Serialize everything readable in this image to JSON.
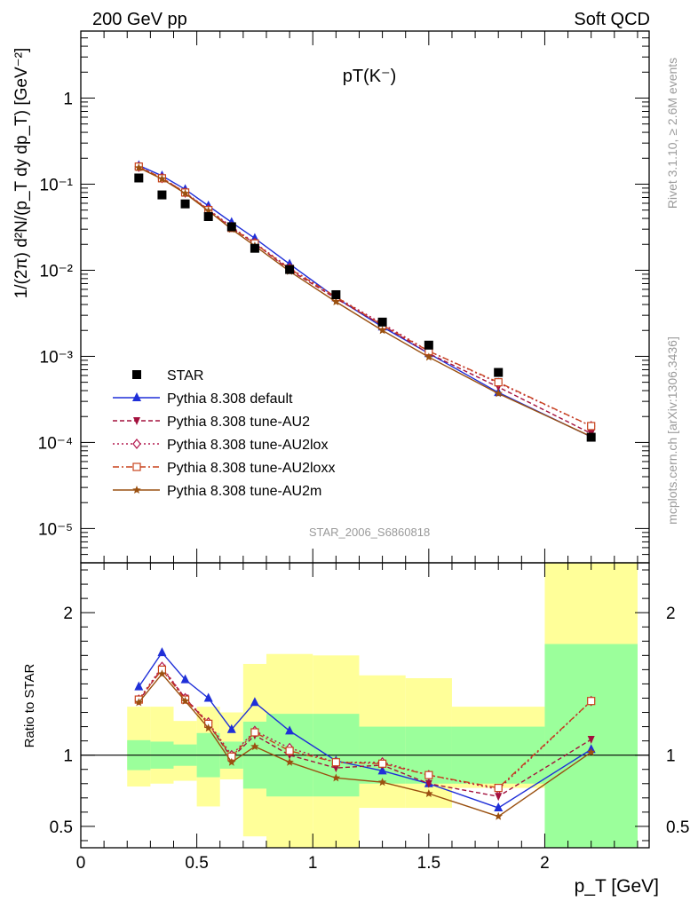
{
  "header": {
    "left": "200 GeV pp",
    "right": "Soft QCD",
    "side_top": "Rivet 3.1.10, ≥ 2.6M events",
    "side_bottom": "mcplots.cern.ch [arXiv:1306.3436]"
  },
  "chart_data": [
    {
      "type": "line",
      "title": "pT(K⁻)",
      "watermark": "STAR_2006_S6860818",
      "ylabel": "1/(2π) d²N/(p_T dy dp_T) [GeV⁻²]",
      "yscale": "log",
      "xlim": [
        0,
        2.45
      ],
      "ylim": [
        4e-06,
        6
      ],
      "ytick_labels": [
        "10⁻⁵",
        "10⁻⁴",
        "10⁻³",
        "10⁻²",
        "10⁻¹",
        "1"
      ],
      "legend_position": "lower-left",
      "x": [
        0.25,
        0.35,
        0.45,
        0.55,
        0.65,
        0.75,
        0.9,
        1.1,
        1.3,
        1.5,
        1.8,
        2.2
      ],
      "series": [
        {
          "name": "STAR",
          "color": "#000000",
          "marker": "square",
          "line": "none",
          "values": [
            0.118,
            0.075,
            0.059,
            0.042,
            0.032,
            0.018,
            0.0102,
            0.0052,
            0.0025,
            0.00135,
            0.00065,
            0.000115
          ]
        },
        {
          "name": "Pythia 8.308 default",
          "color": "#1f2fd8",
          "marker": "triangle-up",
          "line": "solid",
          "values": [
            0.165,
            0.125,
            0.087,
            0.056,
            0.036,
            0.0235,
            0.0118,
            0.0048,
            0.0022,
            0.00108,
            0.00038,
            0.000116
          ]
        },
        {
          "name": "Pythia 8.308 tune-AU2",
          "color": "#a3103d",
          "marker": "triangle-down",
          "line": "dashed",
          "values": [
            0.158,
            0.118,
            0.079,
            0.05,
            0.031,
            0.0205,
            0.0101,
            0.0047,
            0.0023,
            0.00108,
            0.00044,
            0.000127
          ]
        },
        {
          "name": "Pythia 8.308 tune-AU2lox",
          "color": "#b3184e",
          "marker": "diamond",
          "line": "dotted",
          "values": [
            0.159,
            0.118,
            0.08,
            0.051,
            0.032,
            0.0208,
            0.0106,
            0.0049,
            0.0024,
            0.00115,
            0.00049,
            0.000155
          ]
        },
        {
          "name": "Pythia 8.308 tune-AU2loxx",
          "color": "#c8421c",
          "marker": "open-square",
          "line": "dashdot",
          "values": [
            0.16,
            0.117,
            0.08,
            0.05,
            0.031,
            0.0205,
            0.0104,
            0.0049,
            0.0023,
            0.00115,
            0.0005,
            0.000155
          ]
        },
        {
          "name": "Pythia 8.308 tune-AU2m",
          "color": "#9a5010",
          "marker": "star",
          "line": "solid",
          "values": [
            0.155,
            0.115,
            0.078,
            0.049,
            0.03,
            0.0192,
            0.0097,
            0.0043,
            0.002,
            0.00098,
            0.00037,
            0.000117
          ]
        }
      ]
    },
    {
      "type": "line",
      "ylabel": "Ratio to STAR",
      "xlabel": "p_T [GeV]",
      "xlim": [
        0,
        2.45
      ],
      "ylim": [
        0.35,
        2.35
      ],
      "xtick_labels": [
        "0",
        "0.5",
        "1",
        "1.5",
        "2"
      ],
      "ytick_labels": [
        "0.5",
        "1",
        "2"
      ],
      "bands": {
        "bins": [
          [
            0.2,
            0.3
          ],
          [
            0.3,
            0.4
          ],
          [
            0.4,
            0.5
          ],
          [
            0.5,
            0.6
          ],
          [
            0.6,
            0.7
          ],
          [
            0.7,
            0.8
          ],
          [
            0.8,
            1.0
          ],
          [
            1.0,
            1.2
          ],
          [
            1.2,
            1.4
          ],
          [
            1.4,
            1.6
          ],
          [
            1.6,
            2.0
          ],
          [
            2.0,
            2.4
          ]
        ],
        "stat": [
          [
            0.895,
            1.105
          ],
          [
            0.905,
            1.095
          ],
          [
            0.925,
            1.075
          ],
          [
            0.845,
            1.155
          ],
          [
            0.905,
            1.095
          ],
          [
            0.765,
            1.235
          ],
          [
            0.71,
            1.29
          ],
          [
            0.71,
            1.29
          ],
          [
            0.8,
            1.2
          ],
          [
            0.8,
            1.2
          ],
          [
            0.8,
            1.2
          ],
          [
            0.35,
            1.78
          ]
        ],
        "total": [
          [
            0.78,
            1.34
          ],
          [
            0.8,
            1.34
          ],
          [
            0.82,
            1.24
          ],
          [
            0.64,
            1.34
          ],
          [
            0.83,
            1.3
          ],
          [
            0.43,
            1.64
          ],
          [
            0.35,
            1.71
          ],
          [
            0.35,
            1.7
          ],
          [
            0.63,
            1.56
          ],
          [
            0.63,
            1.54
          ],
          [
            0.77,
            1.34
          ],
          [
            0.35,
            2.35
          ]
        ],
        "stat_color": "#9bff9b",
        "total_color": "#ffff99"
      },
      "ratios": {
        "Pythia 8.308 default": [
          1.48,
          1.72,
          1.53,
          1.4,
          1.18,
          1.37,
          1.17,
          0.96,
          0.89,
          0.8,
          0.63,
          1.04
        ],
        "Pythia 8.308 tune-AU2": [
          1.38,
          1.61,
          1.4,
          1.22,
          0.98,
          1.14,
          1.0,
          0.91,
          0.93,
          0.8,
          0.71,
          1.11
        ],
        "Pythia 8.308 tune-AU2lox": [
          1.39,
          1.62,
          1.4,
          1.23,
          1.0,
          1.17,
          1.05,
          0.95,
          0.95,
          0.86,
          0.76,
          1.38
        ],
        "Pythia 8.308 tune-AU2loxx": [
          1.39,
          1.6,
          1.39,
          1.22,
          0.99,
          1.16,
          1.03,
          0.95,
          0.94,
          0.86,
          0.77,
          1.38
        ],
        "Pythia 8.308 tune-AU2m": [
          1.37,
          1.57,
          1.38,
          1.19,
          0.95,
          1.06,
          0.95,
          0.84,
          0.81,
          0.73,
          0.57,
          1.02
        ]
      }
    }
  ]
}
